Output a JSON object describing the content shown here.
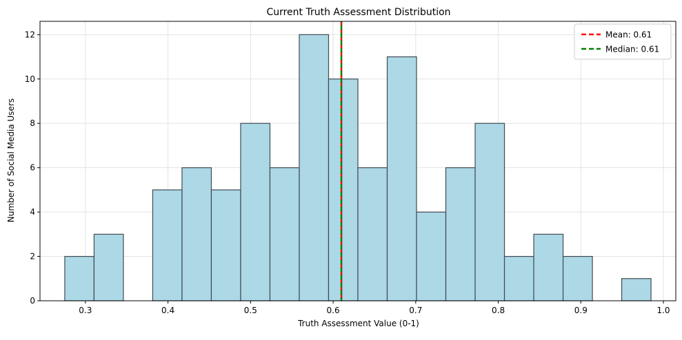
{
  "chart_data": {
    "type": "histogram",
    "title": "Current Truth Assessment Distribution",
    "xlabel": "Truth Assessment Value (0-1)",
    "ylabel": "Number of Social Media Users",
    "xlim": [
      0.245,
      1.015
    ],
    "ylim": [
      0,
      12.6
    ],
    "xticks": [
      {
        "value": 0.3,
        "label": "0.3"
      },
      {
        "value": 0.4,
        "label": "0.4"
      },
      {
        "value": 0.5,
        "label": "0.5"
      },
      {
        "value": 0.6,
        "label": "0.6"
      },
      {
        "value": 0.7,
        "label": "0.7"
      },
      {
        "value": 0.8,
        "label": "0.8"
      },
      {
        "value": 0.9,
        "label": "0.9"
      },
      {
        "value": 1.0,
        "label": "1.0"
      }
    ],
    "yticks": [
      {
        "value": 0,
        "label": "0"
      },
      {
        "value": 2,
        "label": "2"
      },
      {
        "value": 4,
        "label": "4"
      },
      {
        "value": 6,
        "label": "6"
      },
      {
        "value": 8,
        "label": "8"
      },
      {
        "value": 10,
        "label": "10"
      },
      {
        "value": 12,
        "label": "12"
      }
    ],
    "bin_edges": [
      0.275,
      0.3105,
      0.346,
      0.3815,
      0.417,
      0.4525,
      0.488,
      0.5235,
      0.559,
      0.5945,
      0.63,
      0.6655,
      0.701,
      0.7365,
      0.772,
      0.8075,
      0.843,
      0.8785,
      0.914,
      0.9495,
      0.985
    ],
    "counts": [
      2,
      3,
      0,
      5,
      6,
      5,
      8,
      6,
      12,
      10,
      6,
      11,
      4,
      6,
      8,
      2,
      3,
      2,
      0,
      1
    ],
    "bar_color": "#add8e6",
    "bar_edge_color": "#3f4a50",
    "grid": true,
    "reference_lines": [
      {
        "name": "Mean: 0.61",
        "value": 0.61,
        "color": "#ff0000",
        "style": "dashed"
      },
      {
        "name": "Median: 0.61",
        "value": 0.61,
        "color": "#008000",
        "style": "dashed"
      }
    ],
    "legend_position": "top-right"
  }
}
